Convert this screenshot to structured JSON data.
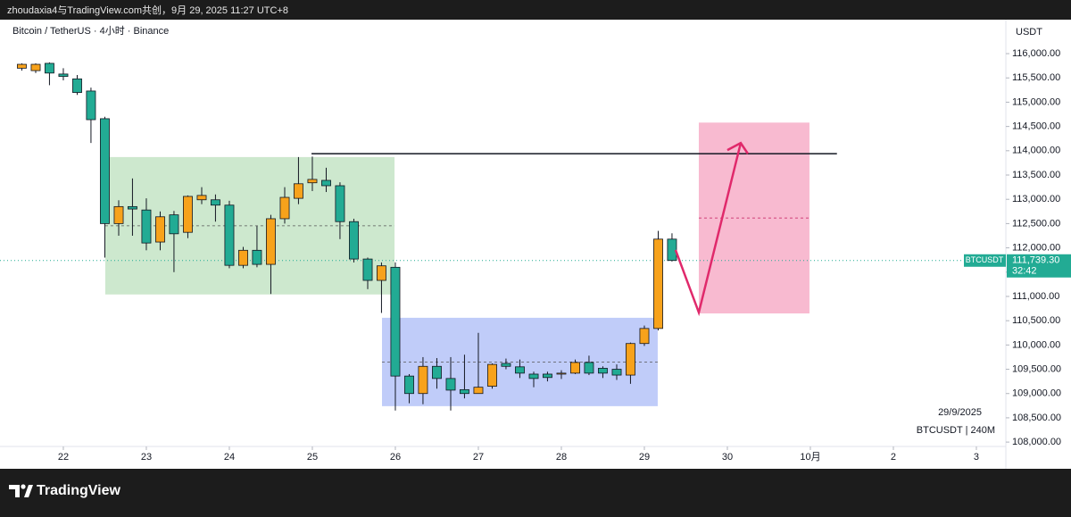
{
  "header": {
    "title": "zhoudaxia4与TradingView.com共创，9月 29, 2025 11:27 UTC+8"
  },
  "chart_data": {
    "type": "candlestick",
    "title": "Bitcoin / TetherUS · 4小时 · Binance",
    "x": [
      21.5,
      21.667,
      21.833,
      22,
      22.167,
      22.333,
      22.5,
      22.667,
      22.833,
      23,
      23.167,
      23.333,
      23.5,
      23.667,
      23.833,
      24,
      24.167,
      24.333,
      24.5,
      24.667,
      24.833,
      25,
      25.167,
      25.333,
      25.5,
      25.667,
      25.833,
      26,
      26.167,
      26.333,
      26.5,
      26.667,
      26.833,
      27,
      27.167,
      27.333,
      27.5,
      27.667,
      27.833,
      28,
      28.167,
      28.333,
      28.5,
      28.667,
      28.833,
      29,
      29.167,
      29.333
    ],
    "open": [
      115700,
      115650,
      115800,
      115580,
      115480,
      115230,
      114660,
      112500,
      112850,
      112780,
      112120,
      112680,
      112320,
      112990,
      112990,
      112880,
      111640,
      111950,
      111660,
      112600,
      113020,
      113340,
      113390,
      113280,
      112540,
      111770,
      111330,
      111600,
      109360,
      109000,
      109560,
      109310,
      109080,
      109000,
      109150,
      109620,
      109550,
      109400,
      109400,
      109400,
      109420,
      109640,
      109520,
      109500,
      109380,
      110030,
      110340,
      112180
    ],
    "high": [
      115800,
      115800,
      115820,
      115700,
      115560,
      115300,
      114700,
      112980,
      113430,
      113020,
      112750,
      112760,
      113080,
      113250,
      113100,
      112970,
      112020,
      112450,
      112680,
      113250,
      113870,
      113880,
      113650,
      113350,
      112600,
      111800,
      111700,
      111700,
      109400,
      109750,
      109730,
      109750,
      109800,
      110250,
      109620,
      109720,
      109700,
      109450,
      109450,
      109480,
      109700,
      109780,
      109560,
      109600,
      110050,
      110400,
      112350,
      112300
    ],
    "low": [
      115650,
      115600,
      115350,
      115450,
      115150,
      114160,
      111800,
      112250,
      112250,
      111950,
      111950,
      111500,
      112200,
      112900,
      112540,
      111580,
      111580,
      111600,
      111050,
      112500,
      112900,
      113170,
      113150,
      112180,
      111700,
      111150,
      110660,
      108650,
      108800,
      108780,
      109100,
      108650,
      108900,
      109000,
      109100,
      109500,
      109320,
      109130,
      109250,
      109300,
      109400,
      109380,
      109320,
      109280,
      109200,
      109980,
      110300,
      111720
    ],
    "close": [
      115780,
      115780,
      115600,
      115530,
      115200,
      114640,
      112500,
      112850,
      112800,
      112100,
      112640,
      112290,
      113060,
      113080,
      112880,
      111640,
      111950,
      111660,
      112600,
      113040,
      113320,
      113410,
      113280,
      112540,
      111770,
      111330,
      111630,
      109360,
      109000,
      109560,
      109310,
      109070,
      109000,
      109130,
      109600,
      109560,
      109420,
      109310,
      109330,
      109420,
      109640,
      109420,
      109420,
      109380,
      110030,
      110340,
      112180,
      111740
    ],
    "up_color": "#f7a21b",
    "down_color": "#22ab94",
    "xlim": [
      21.237,
      33.355
    ],
    "xticks": [
      22,
      23,
      24,
      25,
      26,
      27,
      28,
      29,
      30,
      {
        "value": 31,
        "label": "10月"
      },
      {
        "value": 32,
        "label": "2"
      },
      {
        "value": 33,
        "label": "3"
      }
    ],
    "ylim": [
      107910,
      116700
    ],
    "yticks": [
      {
        "value": 108000,
        "label": "108,000.00"
      },
      {
        "value": 108500,
        "label": "108,500.00"
      },
      {
        "value": 109000,
        "label": "109,000.00"
      },
      {
        "value": 109500,
        "label": "109,500.00"
      },
      {
        "value": 110000,
        "label": "110,000.00"
      },
      {
        "value": 110500,
        "label": "110,500.00"
      },
      {
        "value": 111000,
        "label": "111,000.00"
      },
      {
        "value": 111500,
        "label": "111,500.00"
      },
      {
        "value": 112000,
        "label": "112,000.00"
      },
      {
        "value": 112500,
        "label": "112,500.00"
      },
      {
        "value": 113000,
        "label": "113,000.00"
      },
      {
        "value": 113500,
        "label": "113,500.00"
      },
      {
        "value": 114000,
        "label": "114,000.00"
      },
      {
        "value": 114500,
        "label": "114,500.00"
      },
      {
        "value": 115000,
        "label": "115,000.00"
      },
      {
        "value": 115500,
        "label": "115,500.00"
      },
      {
        "value": 116000,
        "label": "116,000.00"
      }
    ],
    "y_axis_label": "USDT",
    "last_price": {
      "symbol": "BTCUSDT",
      "value": 111739.3,
      "label": "111,739.30",
      "countdown": "32:42"
    },
    "annotations": {
      "date": "29/9/2025",
      "interval": "BTCUSDT | 240M"
    },
    "drawings": {
      "boxes": [
        {
          "x": [
            22.505,
            25.99
          ],
          "y": [
            111040,
            113870
          ],
          "color": "#c8e6c9"
        },
        {
          "x": [
            25.839,
            29.161
          ],
          "y": [
            108740,
            110560
          ],
          "color": "#b9c7f8"
        },
        {
          "x": [
            29.656,
            30.989
          ],
          "y": [
            110650,
            114580
          ],
          "color": "#f7b3cb"
        }
      ],
      "line": {
        "x": [
          24.99,
          31.32
        ],
        "y": 113940
      },
      "arrow": {
        "x": [
          29.376,
          29.656,
          30.161
        ],
        "y": [
          111956,
          110670,
          114160
        ],
        "color": "#e0296b"
      }
    }
  },
  "footer": {
    "brand": "TradingView"
  }
}
